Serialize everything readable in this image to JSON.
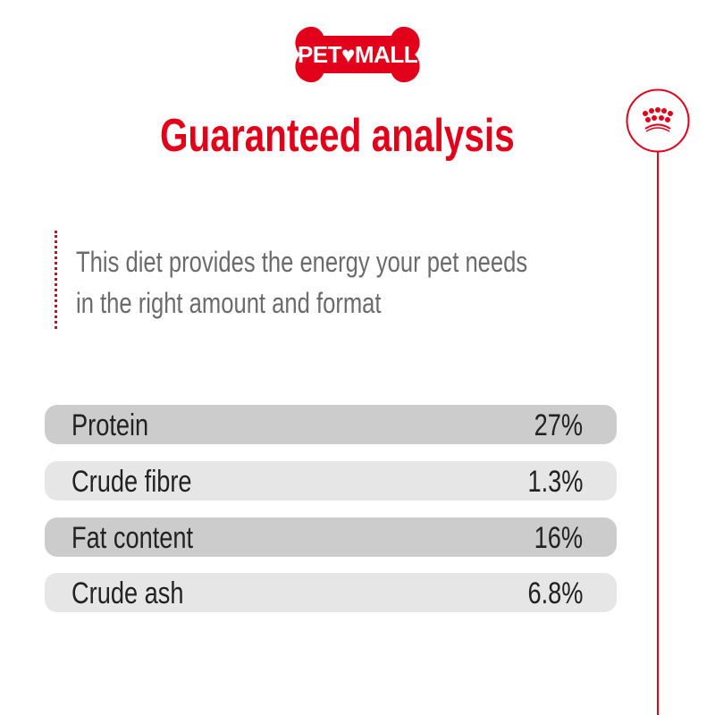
{
  "brand": {
    "logo_text": "PET♥MALL",
    "color": "#e2001a"
  },
  "header": {
    "title": "Guaranteed analysis"
  },
  "description": {
    "line1": "This diet provides the energy your pet needs",
    "line2": "in the right amount and format"
  },
  "analysis": [
    {
      "label": "Protein",
      "value": "27%"
    },
    {
      "label": "Crude fibre",
      "value": "1.3%"
    },
    {
      "label": "Fat content",
      "value": "16%"
    },
    {
      "label": "Crude ash",
      "value": "6.8%"
    }
  ],
  "icons": {
    "crest": "crown-icon"
  }
}
